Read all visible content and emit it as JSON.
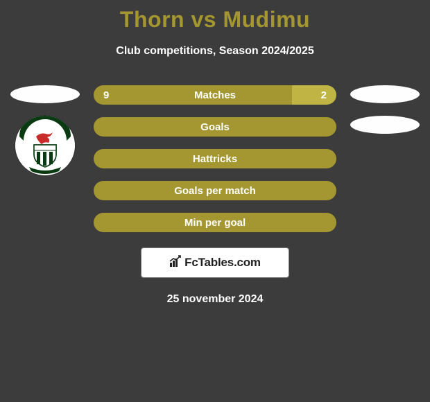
{
  "title": "Thorn vs Mudimu",
  "title_color": "#a49630",
  "subtitle": "Club competitions, Season 2024/2025",
  "badge_text": "FcTables.com",
  "date_text": "25 november 2024",
  "colors": {
    "primary": "#a49630",
    "secondary": "#c0b445",
    "text": "#ffffff",
    "background": "#3c3c3c"
  },
  "stats": [
    {
      "label": "Matches",
      "left_value": "9",
      "right_value": "2",
      "left_pct": 81.8,
      "right_pct": 18.2,
      "left_color": "#a49630",
      "right_color": "#c0b445"
    },
    {
      "label": "Goals",
      "left_value": "",
      "right_value": "",
      "left_pct": 100,
      "right_pct": 0,
      "left_color": "#a49630",
      "right_color": "#c0b445"
    },
    {
      "label": "Hattricks",
      "left_value": "",
      "right_value": "",
      "left_pct": 100,
      "right_pct": 0,
      "left_color": "#a49630",
      "right_color": "#c0b445"
    },
    {
      "label": "Goals per match",
      "left_value": "",
      "right_value": "",
      "left_pct": 100,
      "right_pct": 0,
      "left_color": "#a49630",
      "right_color": "#c0b445"
    },
    {
      "label": "Min per goal",
      "left_value": "",
      "right_value": "",
      "left_pct": 100,
      "right_pct": 0,
      "left_color": "#a49630",
      "right_color": "#c0b445"
    }
  ],
  "crest": {
    "banner_text": "125 YEARS",
    "banner_color": "#0a3a12",
    "dragon_color": "#c92a2a",
    "shield_stripe_a": "#0a3a12",
    "shield_stripe_b": "#ffffff",
    "shield_border": "#0a3a12",
    "ribbon_color": "#0a3a12"
  }
}
